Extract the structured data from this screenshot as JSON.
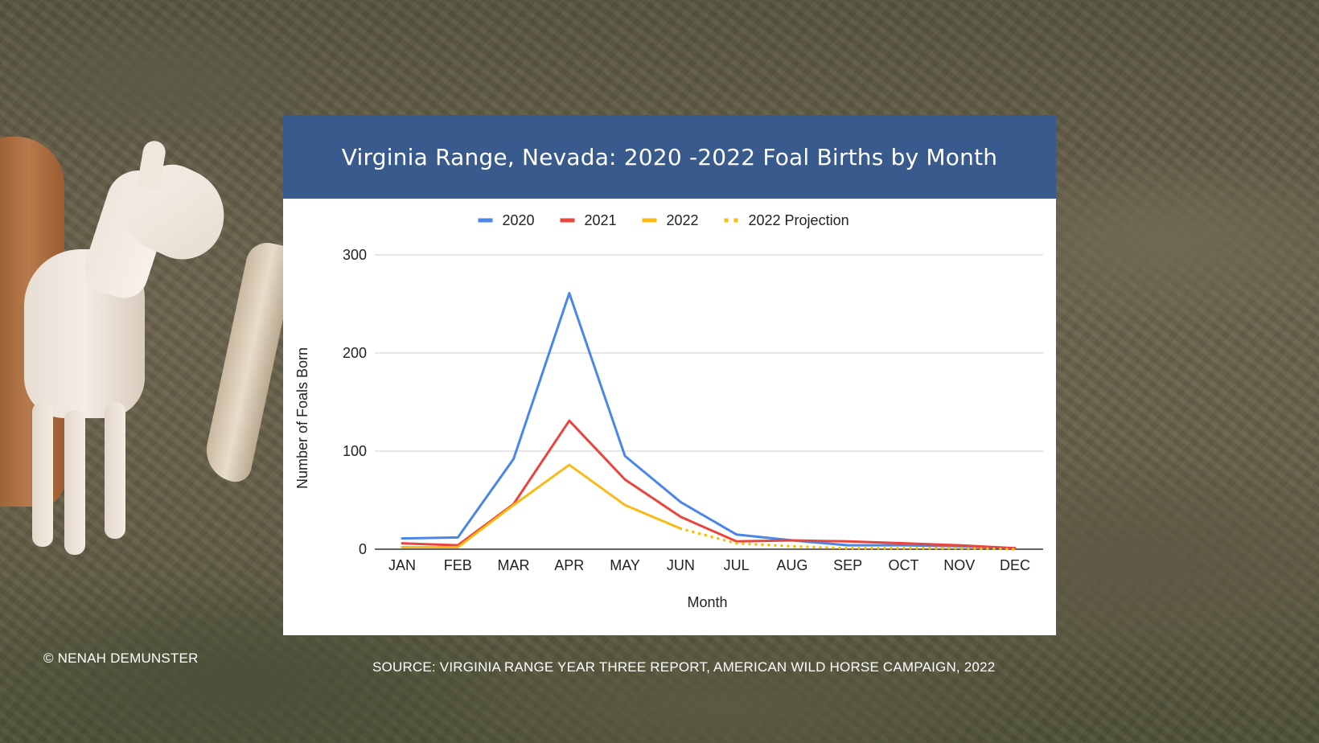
{
  "header": {
    "title": "Virginia Range, Nevada: 2020 -2022 Foal Births by Month"
  },
  "footer": {
    "credit": "© NENAH DEMUNSTER",
    "source": "SOURCE: VIRGINIA RANGE YEAR THREE REPORT, AMERICAN WILD HORSE CAMPAIGN, 2022"
  },
  "chart_data": {
    "type": "line",
    "title": "Virginia Range, Nevada: 2020 -2022 Foal Births by Month",
    "xlabel": "Month",
    "ylabel": "Number of Foals Born",
    "ylim": [
      0,
      300
    ],
    "yticks": [
      0,
      100,
      200,
      300
    ],
    "grid": true,
    "legend_position": "top",
    "categories": [
      "JAN",
      "FEB",
      "MAR",
      "APR",
      "MAY",
      "JUN",
      "JUL",
      "AUG",
      "SEP",
      "OCT",
      "NOV",
      "DEC"
    ],
    "series": [
      {
        "name": "2020",
        "color": "#4a86e8",
        "style": "solid",
        "values": [
          11,
          12,
          92,
          261,
          95,
          48,
          15,
          9,
          4,
          4,
          3,
          1
        ]
      },
      {
        "name": "2021",
        "color": "#e8453c",
        "style": "solid",
        "values": [
          6,
          4,
          46,
          131,
          71,
          33,
          8,
          9,
          8,
          6,
          4,
          1
        ]
      },
      {
        "name": "2022",
        "color": "#f9bb13",
        "style": "solid",
        "values": [
          2,
          2,
          45,
          86,
          45,
          21,
          null,
          null,
          null,
          null,
          null,
          null
        ]
      },
      {
        "name": "2022 Projection",
        "color": "#f9bb13",
        "style": "dotted",
        "values": [
          null,
          null,
          null,
          null,
          null,
          21,
          6,
          3,
          1,
          1,
          1,
          0
        ]
      }
    ]
  }
}
